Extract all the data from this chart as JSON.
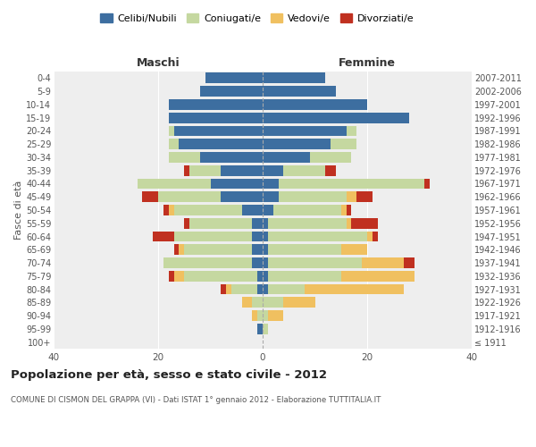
{
  "age_groups": [
    "100+",
    "95-99",
    "90-94",
    "85-89",
    "80-84",
    "75-79",
    "70-74",
    "65-69",
    "60-64",
    "55-59",
    "50-54",
    "45-49",
    "40-44",
    "35-39",
    "30-34",
    "25-29",
    "20-24",
    "15-19",
    "10-14",
    "5-9",
    "0-4"
  ],
  "birth_years": [
    "≤ 1911",
    "1912-1916",
    "1917-1921",
    "1922-1926",
    "1927-1931",
    "1932-1936",
    "1937-1941",
    "1942-1946",
    "1947-1951",
    "1952-1956",
    "1957-1961",
    "1962-1966",
    "1967-1971",
    "1972-1976",
    "1977-1981",
    "1982-1986",
    "1987-1991",
    "1992-1996",
    "1997-2001",
    "2002-2006",
    "2007-2011"
  ],
  "maschi": {
    "celibi": [
      0,
      1,
      0,
      0,
      1,
      1,
      2,
      2,
      2,
      2,
      4,
      8,
      10,
      8,
      12,
      16,
      17,
      18,
      18,
      12,
      11
    ],
    "coniugati": [
      0,
      0,
      1,
      2,
      5,
      14,
      17,
      13,
      15,
      12,
      13,
      12,
      14,
      6,
      6,
      2,
      1,
      0,
      0,
      0,
      0
    ],
    "vedovi": [
      0,
      0,
      1,
      2,
      1,
      2,
      0,
      1,
      0,
      0,
      1,
      0,
      0,
      0,
      0,
      0,
      0,
      0,
      0,
      0,
      0
    ],
    "divorziati": [
      0,
      0,
      0,
      0,
      1,
      1,
      0,
      1,
      4,
      1,
      1,
      3,
      0,
      1,
      0,
      0,
      0,
      0,
      0,
      0,
      0
    ]
  },
  "femmine": {
    "nubili": [
      0,
      0,
      0,
      0,
      1,
      1,
      1,
      1,
      1,
      1,
      2,
      3,
      3,
      4,
      9,
      13,
      16,
      28,
      20,
      14,
      12
    ],
    "coniugate": [
      0,
      1,
      1,
      4,
      7,
      14,
      18,
      14,
      19,
      15,
      13,
      13,
      28,
      8,
      8,
      5,
      2,
      0,
      0,
      0,
      0
    ],
    "vedove": [
      0,
      0,
      3,
      6,
      19,
      14,
      8,
      5,
      1,
      1,
      1,
      2,
      0,
      0,
      0,
      0,
      0,
      0,
      0,
      0,
      0
    ],
    "divorziate": [
      0,
      0,
      0,
      0,
      0,
      0,
      2,
      0,
      1,
      5,
      1,
      3,
      1,
      2,
      0,
      0,
      0,
      0,
      0,
      0,
      0
    ]
  },
  "colors": {
    "celibi": "#3D6EA0",
    "coniugati": "#C5D8A0",
    "vedovi": "#F0C060",
    "divorziati": "#C03020"
  },
  "xlim": 40,
  "title": "Popolazione per età, sesso e stato civile - 2012",
  "subtitle": "COMUNE DI CISMON DEL GRAPPA (VI) - Dati ISTAT 1° gennaio 2012 - Elaborazione TUTTITALIA.IT",
  "ylabel_left": "Fasce di età",
  "xlabel_maschi": "Maschi",
  "xlabel_femmine": "Femmine",
  "legend_labels": [
    "Celibi/Nubili",
    "Coniugati/e",
    "Vedovi/e",
    "Divorziati/e"
  ],
  "background_color": "#ffffff",
  "bar_height": 0.8,
  "figsize": [
    6.0,
    5.0
  ],
  "dpi": 100
}
